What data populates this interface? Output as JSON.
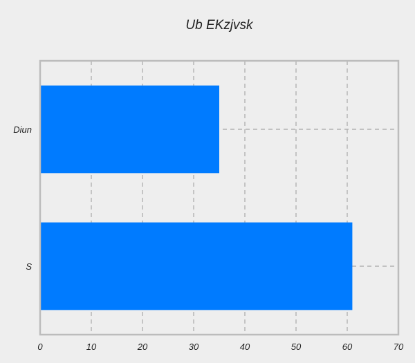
{
  "chart_data": {
    "type": "bar",
    "orientation": "horizontal",
    "title": "Ub EKzjvsk",
    "xlabel": "",
    "ylabel": "",
    "categories": [
      "S",
      "Diun"
    ],
    "values": [
      61,
      35
    ],
    "xlim": [
      0,
      70
    ],
    "x_ticks": [
      0,
      10,
      20,
      30,
      40,
      50,
      60,
      70
    ],
    "grid": true,
    "legend": "none",
    "colors": {
      "bar": "#007bff",
      "background": "#eeeeee",
      "grid": "#b2b2b2",
      "frame": "#bcbcbc",
      "text": "#222222"
    }
  }
}
